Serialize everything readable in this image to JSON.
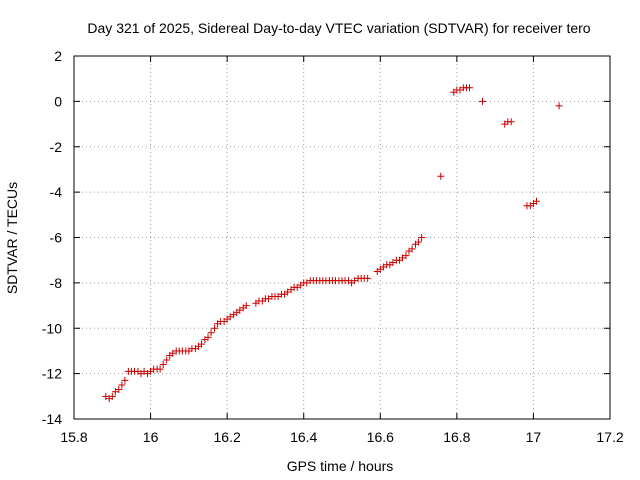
{
  "chart_data": {
    "type": "scatter",
    "title": "Day 321 of 2025, Sidereal Day-to-day VTEC variation (SDTVAR) for receiver tero",
    "xlabel": "GPS time / hours",
    "ylabel": "SDTVAR / TECUs",
    "xlim": [
      15.8,
      17.2
    ],
    "ylim": [
      -14,
      2
    ],
    "xticks": [
      15.8,
      16,
      16.2,
      16.4,
      16.6,
      16.8,
      17,
      17.2
    ],
    "xtick_labels": [
      "15.8",
      "16",
      "16.2",
      "16.4",
      "16.6",
      "16.8",
      "17",
      "17.2"
    ],
    "yticks": [
      -14,
      -12,
      -10,
      -8,
      -6,
      -4,
      -2,
      0,
      2
    ],
    "ytick_labels": [
      "-14",
      "-12",
      "-10",
      "-8",
      "-6",
      "-4",
      "-2",
      "0",
      "2"
    ],
    "grid": true,
    "marker": "plus",
    "marker_color": "#cc0000",
    "series": [
      {
        "name": "SDTVAR",
        "x": [
          15.883,
          15.892,
          15.9,
          15.908,
          15.917,
          15.925,
          15.933,
          15.942,
          15.95,
          15.958,
          15.967,
          15.975,
          15.983,
          15.992,
          16.0,
          16.008,
          16.017,
          16.025,
          16.033,
          16.042,
          16.05,
          16.058,
          16.067,
          16.075,
          16.083,
          16.092,
          16.1,
          16.108,
          16.117,
          16.125,
          16.133,
          16.142,
          16.15,
          16.158,
          16.167,
          16.175,
          16.183,
          16.192,
          16.2,
          16.208,
          16.217,
          16.225,
          16.233,
          16.242,
          16.25,
          16.275,
          16.283,
          16.292,
          16.3,
          16.308,
          16.317,
          16.325,
          16.333,
          16.342,
          16.35,
          16.358,
          16.367,
          16.375,
          16.383,
          16.392,
          16.4,
          16.408,
          16.417,
          16.425,
          16.433,
          16.442,
          16.45,
          16.458,
          16.467,
          16.475,
          16.483,
          16.492,
          16.5,
          16.508,
          16.517,
          16.525,
          16.533,
          16.542,
          16.55,
          16.558,
          16.567,
          16.592,
          16.6,
          16.608,
          16.617,
          16.625,
          16.633,
          16.642,
          16.65,
          16.658,
          16.667,
          16.675,
          16.683,
          16.692,
          16.7,
          16.708,
          16.758,
          16.792,
          16.8,
          16.808,
          16.817,
          16.825,
          16.833,
          16.867,
          16.925,
          16.933,
          16.942,
          16.983,
          16.992,
          17.0,
          17.008,
          17.067
        ],
        "y": [
          -13.0,
          -13.1,
          -13.0,
          -12.8,
          -12.7,
          -12.5,
          -12.3,
          -11.9,
          -11.9,
          -11.9,
          -11.9,
          -12.0,
          -11.9,
          -12.0,
          -11.9,
          -11.8,
          -11.8,
          -11.8,
          -11.6,
          -11.4,
          -11.2,
          -11.1,
          -11.0,
          -11.0,
          -11.0,
          -11.0,
          -11.0,
          -10.9,
          -10.9,
          -10.8,
          -10.7,
          -10.5,
          -10.4,
          -10.2,
          -10.0,
          -9.8,
          -9.7,
          -9.7,
          -9.6,
          -9.5,
          -9.4,
          -9.3,
          -9.2,
          -9.1,
          -9.0,
          -8.9,
          -8.8,
          -8.8,
          -8.7,
          -8.7,
          -8.6,
          -8.6,
          -8.6,
          -8.5,
          -8.5,
          -8.4,
          -8.3,
          -8.2,
          -8.2,
          -8.1,
          -8.0,
          -8.0,
          -7.9,
          -7.9,
          -7.9,
          -7.9,
          -7.9,
          -7.9,
          -7.9,
          -7.9,
          -7.9,
          -7.9,
          -7.9,
          -7.9,
          -7.9,
          -8.0,
          -7.9,
          -7.8,
          -7.8,
          -7.8,
          -7.8,
          -7.5,
          -7.4,
          -7.3,
          -7.2,
          -7.2,
          -7.1,
          -7.0,
          -7.0,
          -6.9,
          -6.8,
          -6.6,
          -6.5,
          -6.3,
          -6.2,
          -6.0,
          -3.3,
          0.4,
          0.5,
          0.5,
          0.6,
          0.6,
          0.6,
          0.0,
          -1.0,
          -0.9,
          -0.9,
          -4.6,
          -4.6,
          -4.5,
          -4.4,
          -0.2
        ]
      }
    ]
  }
}
